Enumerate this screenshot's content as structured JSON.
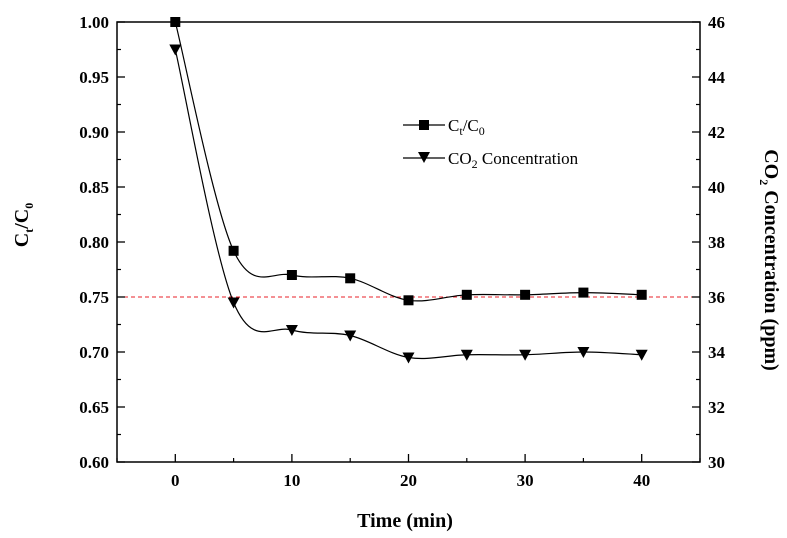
{
  "chart_data": {
    "type": "line",
    "x_label": "Time (min)",
    "x_ticks": [
      "0",
      "10",
      "20",
      "30",
      "40"
    ],
    "x_range": [
      -5,
      45
    ],
    "y_left": {
      "label_main": "C",
      "label_sub1": "t",
      "label_sep": "/C",
      "label_sub2": "0",
      "range": [
        0.6,
        1.0
      ],
      "ticks": [
        "0.60",
        "0.65",
        "0.70",
        "0.75",
        "0.80",
        "0.85",
        "0.90",
        "0.95",
        "1.00"
      ]
    },
    "y_right": {
      "label_pre": "CO",
      "label_sub": "2",
      "label_post": " Concentration (ppm)",
      "range": [
        30,
        46
      ],
      "ticks": [
        "30",
        "32",
        "34",
        "36",
        "38",
        "40",
        "42",
        "44",
        "46"
      ]
    },
    "reference_line": {
      "y": 0.75,
      "axis": "left",
      "color": "#e8202a",
      "style": "dashed"
    },
    "series": [
      {
        "marker": "square",
        "axis": "left",
        "legend_main": "C",
        "legend_sub1": "t",
        "legend_sep": "/C",
        "legend_sub2": "0",
        "x": [
          0,
          5,
          10,
          15,
          20,
          25,
          30,
          35,
          40
        ],
        "values": [
          1.0,
          0.792,
          0.77,
          0.767,
          0.747,
          0.752,
          0.752,
          0.754,
          0.752
        ]
      },
      {
        "marker": "triangle-down",
        "axis": "right",
        "legend_pre": "CO",
        "legend_sub": "2",
        "legend_post": " Concentration",
        "x": [
          0,
          5,
          10,
          15,
          20,
          25,
          30,
          35,
          40
        ],
        "values": [
          45.0,
          35.8,
          34.8,
          34.6,
          33.8,
          33.9,
          33.9,
          34.0,
          33.9
        ]
      }
    ],
    "grid": false,
    "legend_position": "upper-right"
  }
}
